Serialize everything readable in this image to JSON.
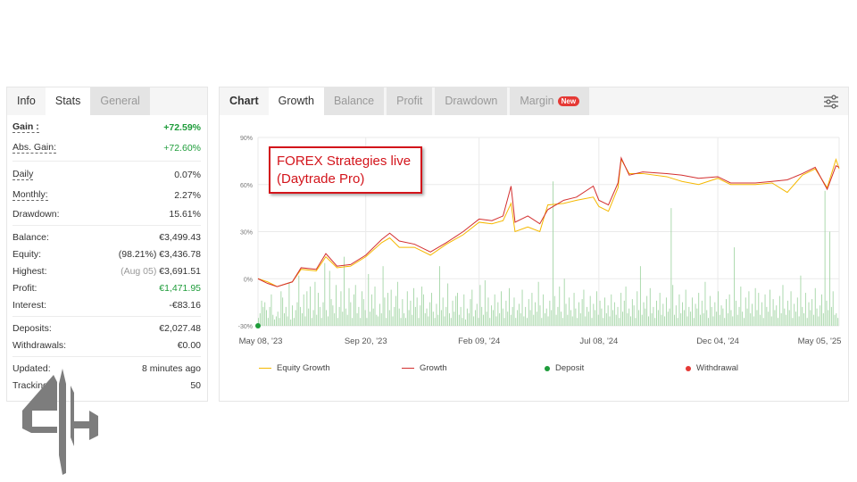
{
  "left_tabs": [
    "Info",
    "Stats",
    "General"
  ],
  "stats": {
    "gain": {
      "label": "Gain :",
      "value": "+72.59%"
    },
    "abs_gain": {
      "label": "Abs. Gain:",
      "value": "+72.60%"
    },
    "daily": {
      "label": "Daily",
      "value": "0.07%"
    },
    "monthly": {
      "label": "Monthly:",
      "value": "2.27%"
    },
    "drawdown": {
      "label": "Drawdown:",
      "value": "15.61%"
    },
    "balance": {
      "label": "Balance:",
      "value": "€3,499.43"
    },
    "equity": {
      "label": "Equity:",
      "pct": "(98.21%)",
      "value": "€3,436.78"
    },
    "highest": {
      "label": "Highest:",
      "date": "(Aug 05)",
      "value": "€3,691.51"
    },
    "profit": {
      "label": "Profit:",
      "value": "€1,471.95"
    },
    "interest": {
      "label": "Interest:",
      "value": "-€83.16"
    },
    "deposits": {
      "label": "Deposits:",
      "value": "€2,027.48"
    },
    "withdrawals": {
      "label": "Withdrawals:",
      "value": "€0.00"
    },
    "updated": {
      "label": "Updated:",
      "value": "8 minutes ago"
    },
    "tracking": {
      "label": "Tracking:",
      "value": "50"
    }
  },
  "right_tabs": {
    "chart": "Chart",
    "growth": "Growth",
    "balance": "Balance",
    "profit": "Profit",
    "drawdown": "Drawdown",
    "margin": "Margin",
    "new_badge": "New"
  },
  "annotation": {
    "line1": "FOREX Strategies live",
    "line2": "(Daytrade Pro)"
  },
  "colors": {
    "equity": "#f5b800",
    "growth": "#d32f2f",
    "deposit": "#1e9c3a",
    "withdrawal": "#e53935",
    "bars": "#a5d6a7"
  },
  "chart_data": {
    "type": "line",
    "ylim": [
      -30,
      90
    ],
    "yticks": [
      "-30%",
      "0%",
      "30%",
      "60%",
      "90%"
    ],
    "ytick_values": [
      -30,
      0,
      30,
      60,
      90
    ],
    "xlim": [
      "2023-05-08",
      "2025-05-05"
    ],
    "xticks": [
      "May 08, '23",
      "Sep 20, '23",
      "Feb 09, '24",
      "Jul 08, '24",
      "Dec 04, '24",
      "May 05, '25"
    ],
    "xtick_dates": [
      "2023-05-08",
      "2023-09-20",
      "2024-02-09",
      "2024-07-08",
      "2024-12-04",
      "2025-05-05"
    ],
    "grid": true,
    "legend_placement": "bottom",
    "series": [
      {
        "name": "Equity Growth",
        "x": [
          "2023-05-08",
          "2023-05-20",
          "2023-06-01",
          "2023-06-20",
          "2023-07-01",
          "2023-07-20",
          "2023-08-01",
          "2023-08-15",
          "2023-09-01",
          "2023-09-20",
          "2023-10-10",
          "2023-10-20",
          "2023-11-01",
          "2023-11-20",
          "2023-12-10",
          "2023-12-30",
          "2024-01-20",
          "2024-02-09",
          "2024-02-25",
          "2024-03-10",
          "2024-03-20",
          "2024-03-25",
          "2024-04-10",
          "2024-04-25",
          "2024-05-05",
          "2024-05-25",
          "2024-06-10",
          "2024-07-01",
          "2024-07-08",
          "2024-07-20",
          "2024-08-01",
          "2024-08-05",
          "2024-08-15",
          "2024-09-01",
          "2024-10-01",
          "2024-10-20",
          "2024-11-10",
          "2024-12-04",
          "2024-12-20",
          "2025-01-20",
          "2025-02-10",
          "2025-03-01",
          "2025-03-20",
          "2025-04-05",
          "2025-04-20",
          "2025-05-01",
          "2025-05-05"
        ],
        "y": [
          0,
          -2,
          -5,
          -2,
          6,
          5,
          14,
          7,
          8,
          14,
          23,
          26,
          20,
          20,
          15,
          22,
          28,
          36,
          35,
          37,
          48,
          30,
          33,
          30,
          47,
          48,
          50,
          52,
          46,
          43,
          58,
          76,
          67,
          67,
          65,
          62,
          60,
          64,
          60,
          60,
          61,
          55,
          66,
          70,
          58,
          76,
          70
        ]
      },
      {
        "name": "Growth",
        "x": [
          "2023-05-08",
          "2023-05-20",
          "2023-06-01",
          "2023-06-20",
          "2023-07-01",
          "2023-07-20",
          "2023-08-01",
          "2023-08-15",
          "2023-09-01",
          "2023-09-20",
          "2023-10-10",
          "2023-10-20",
          "2023-11-01",
          "2023-11-20",
          "2023-12-10",
          "2023-12-30",
          "2024-01-20",
          "2024-02-09",
          "2024-02-25",
          "2024-03-10",
          "2024-03-20",
          "2024-03-25",
          "2024-04-10",
          "2024-04-25",
          "2024-05-05",
          "2024-05-25",
          "2024-06-10",
          "2024-07-01",
          "2024-07-08",
          "2024-07-20",
          "2024-08-01",
          "2024-08-05",
          "2024-08-15",
          "2024-09-01",
          "2024-10-01",
          "2024-10-20",
          "2024-11-10",
          "2024-12-04",
          "2024-12-20",
          "2025-01-20",
          "2025-02-10",
          "2025-03-01",
          "2025-03-20",
          "2025-04-05",
          "2025-04-20",
          "2025-05-01",
          "2025-05-05"
        ],
        "y": [
          0,
          -3,
          -5,
          -2,
          7,
          6,
          16,
          8,
          9,
          15,
          25,
          29,
          24,
          22,
          17,
          23,
          30,
          38,
          37,
          40,
          59,
          36,
          40,
          35,
          44,
          50,
          52,
          59,
          50,
          47,
          61,
          77,
          66,
          68,
          67,
          66,
          64,
          65,
          61,
          61,
          62,
          63,
          67,
          71,
          57,
          72,
          71
        ]
      }
    ],
    "bars": [
      -25,
      -22,
      -14,
      -18,
      -15,
      -20,
      -25,
      -18,
      -10,
      -23,
      -26,
      -24,
      -21,
      -25,
      -8,
      -12,
      -22,
      -18,
      -24,
      -3,
      -26,
      -17,
      -25,
      -20,
      -15,
      2,
      -18,
      -22,
      -10,
      -24,
      -8,
      -19,
      -5,
      -25,
      -20,
      -2,
      -23,
      -9,
      -18,
      -25,
      -15,
      10,
      -20,
      -24,
      5,
      -13,
      -17,
      -22,
      -4,
      -25,
      -18,
      -8,
      -21,
      14,
      -19,
      -23,
      -6,
      -15,
      -25,
      -10,
      -4,
      -22,
      -18,
      -25,
      -8,
      -13,
      -20,
      -25,
      3,
      -21,
      -10,
      -19,
      -5,
      -23,
      -24,
      -16,
      -22,
      8,
      -12,
      -25,
      -9,
      -20,
      -7,
      -24,
      -18,
      -11,
      -2,
      -19,
      -25,
      -13,
      -22,
      -25,
      -8,
      -20,
      -14,
      -23,
      -6,
      -18,
      -12,
      -25,
      -17,
      -5,
      -10,
      -22,
      -19,
      -24,
      -15,
      -9,
      -21,
      -25,
      -16,
      -23,
      8,
      -20,
      -12,
      -24,
      -18,
      -3,
      -22,
      -25,
      -14,
      -21,
      -11,
      -9,
      -23,
      -18,
      -25,
      -10,
      -26,
      -19,
      -22,
      -13,
      -7,
      -24,
      -20,
      -16,
      -25,
      -4,
      -18,
      -23,
      -1,
      -21,
      -12,
      -25,
      -17,
      -20,
      -10,
      -24,
      -15,
      -22,
      -8,
      -19,
      -25,
      -14,
      -21,
      -6,
      -23,
      -18,
      -12,
      -25,
      -20,
      -16,
      -22,
      -7,
      -24,
      -18,
      -25,
      -13,
      -20,
      -9,
      -23,
      -15,
      -21,
      -2,
      -17,
      -25,
      -10,
      -22,
      -19,
      -24,
      -14,
      -20,
      62,
      -11,
      -23,
      -18,
      -5,
      -21,
      -25,
      0,
      -16,
      -23,
      -12,
      -20,
      -24,
      -9,
      -19,
      -25,
      -15,
      -22,
      -13,
      -7,
      -24,
      -18,
      -21,
      -11,
      -25,
      -16,
      -20,
      -8,
      -23,
      -14,
      -19,
      -25,
      -12,
      -22,
      -17,
      -24,
      -10,
      -20,
      -15,
      -23,
      -18,
      -25,
      -9,
      -21,
      -14,
      -5,
      -22,
      -19,
      -24,
      -13,
      -17,
      -25,
      -8,
      -20,
      8,
      -23,
      -15,
      -19,
      -11,
      -24,
      -6,
      -22,
      -18,
      -25,
      -14,
      -20,
      -9,
      -23,
      -16,
      -24,
      -12,
      -21,
      -19,
      45,
      -4,
      -23,
      -17,
      -25,
      -10,
      -22,
      -15,
      -20,
      -7,
      -24,
      -18,
      -21,
      -12,
      -25,
      -16,
      -19,
      -9,
      -23,
      -14,
      -22,
      -2,
      -20,
      -25,
      -11,
      -18,
      -24,
      -15,
      -21,
      -8,
      -23,
      -17,
      -19,
      -25,
      -13,
      -22,
      -10,
      -20,
      -24,
      20,
      -14,
      -23,
      -18,
      -5,
      -21,
      -25,
      -12,
      -19,
      -8,
      -22,
      -16,
      -24,
      -6,
      -20,
      -9,
      -23,
      -15,
      -25,
      -10,
      -18,
      -21,
      -7,
      -24,
      -13,
      -20,
      -17,
      -25,
      -11,
      -22,
      -4,
      -19,
      -23,
      -14,
      -20,
      -8,
      -25,
      -16,
      -21,
      -12,
      -24,
      2,
      -18,
      -22,
      -9,
      -25,
      -15,
      -20,
      -13,
      -23,
      -6,
      -19,
      -24,
      -17,
      -10,
      -22,
      56,
      -14,
      -20,
      30,
      -18,
      -8,
      -23,
      -22,
      -25
    ]
  },
  "legend": {
    "equity": "Equity Growth",
    "growth": "Growth",
    "deposit": "Deposit",
    "withdrawal": "Withdrawal"
  }
}
